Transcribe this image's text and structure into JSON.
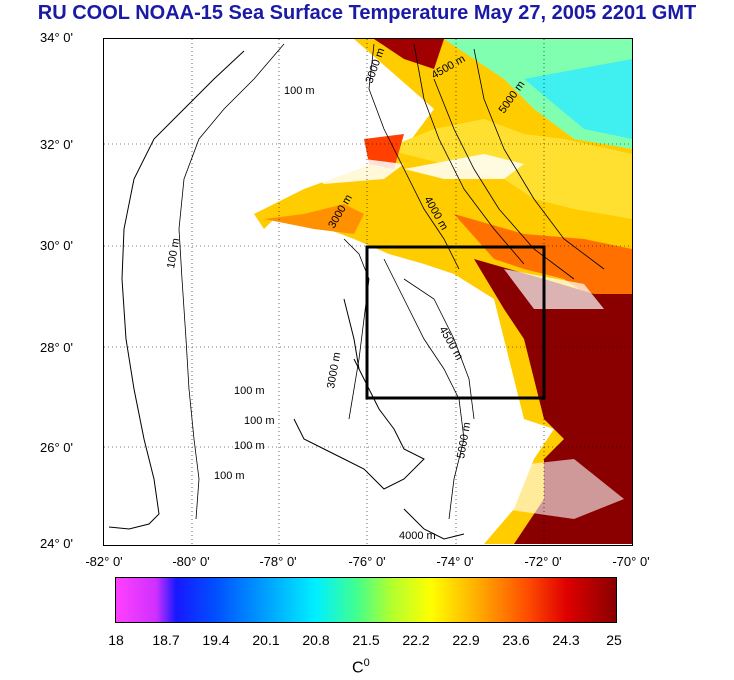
{
  "title": "RU COOL  NOAA-15 Sea Surface Temperature May 27, 2005 2201 GMT",
  "map": {
    "lat_labels": [
      "34° 0'",
      "32° 0'",
      "30° 0'",
      "28° 0'",
      "26° 0'",
      "24° 0'"
    ],
    "lon_labels": [
      "-82° 0'",
      "-80° 0'",
      "-78° 0'",
      "-76° 0'",
      "-74° 0'",
      "-72° 0'",
      "-70° 0'"
    ],
    "contour_labels": [
      "100 m",
      "3000 m",
      "4500 m",
      "5000 m",
      "4000 m",
      "100 m",
      "100 m",
      "100 m",
      "100 m",
      "100 m",
      "3000 m",
      "4000 m",
      "4500 m",
      "5000 m",
      "3000 m"
    ],
    "colors": {
      "coast": "#000000",
      "box": "#000000",
      "title": "#1a1aa6"
    }
  },
  "colorbar": {
    "ticks": [
      "18",
      "18.7",
      "19.4",
      "20.1",
      "20.8",
      "21.5",
      "22.2",
      "22.9",
      "23.6",
      "24.3",
      "25"
    ],
    "unit": "C",
    "unit_sup": "0"
  }
}
